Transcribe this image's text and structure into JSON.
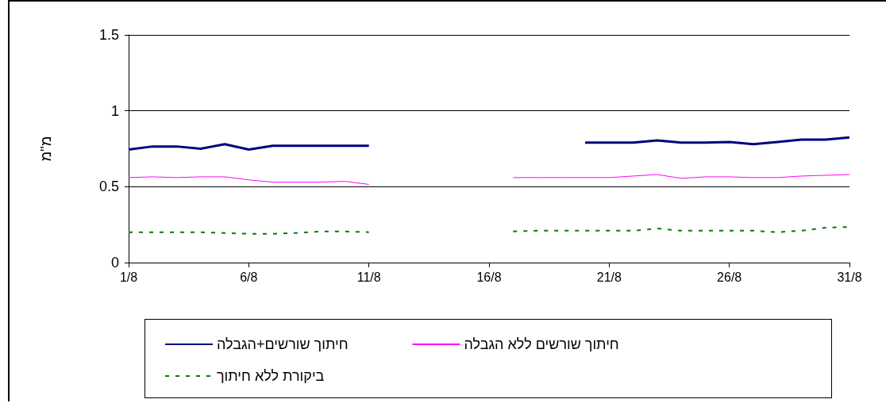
{
  "chart_data": {
    "type": "line",
    "ylabel": "מ''מ",
    "categories": [
      "1/8",
      null,
      null,
      null,
      null,
      "6/8",
      null,
      null,
      null,
      null,
      "11/8",
      null,
      null,
      null,
      null,
      "16/8",
      null,
      null,
      null,
      null,
      "21/8",
      null,
      null,
      null,
      null,
      "26/8",
      null,
      null,
      null,
      null,
      "31/8"
    ],
    "ylim": [
      0,
      1.5
    ],
    "yticks": [
      0,
      0.5,
      1,
      1.5
    ],
    "grid": "y",
    "legend": "bottom",
    "marker": "none",
    "series": [
      {
        "name": "חיתוך שורשים+הגבלה",
        "color": "#000080",
        "line_style": "solid",
        "values": [
          0.745,
          0.765,
          0.765,
          0.75,
          0.78,
          0.745,
          0.77,
          0.77,
          0.77,
          0.77,
          0.77,
          null,
          null,
          null,
          null,
          null,
          null,
          null,
          null,
          0.79,
          0.79,
          0.79,
          0.805,
          0.79,
          0.79,
          0.795,
          0.78,
          0.795,
          0.81,
          0.81,
          0.825
        ]
      },
      {
        "name": "חיתוך שורשים ללא הגבלה",
        "color": "#ff00ff",
        "line_style": "solid",
        "values": [
          0.56,
          0.565,
          0.56,
          0.565,
          0.565,
          0.545,
          0.53,
          0.53,
          0.53,
          0.535,
          0.515,
          null,
          null,
          null,
          null,
          null,
          0.56,
          0.56,
          0.56,
          0.56,
          0.56,
          0.57,
          0.58,
          0.555,
          0.565,
          0.565,
          0.56,
          0.56,
          0.57,
          0.575,
          0.58
        ]
      },
      {
        "name": "ביקורת ללא חיתוך",
        "color": "#008000",
        "line_style": "dashed",
        "values": [
          0.2,
          0.2,
          0.2,
          0.2,
          0.195,
          0.19,
          0.19,
          0.195,
          0.205,
          0.205,
          0.2,
          null,
          null,
          null,
          null,
          null,
          0.205,
          0.21,
          0.21,
          0.21,
          0.21,
          0.21,
          0.225,
          0.21,
          0.21,
          0.21,
          0.21,
          0.2,
          0.21,
          0.23,
          0.235
        ]
      }
    ]
  }
}
